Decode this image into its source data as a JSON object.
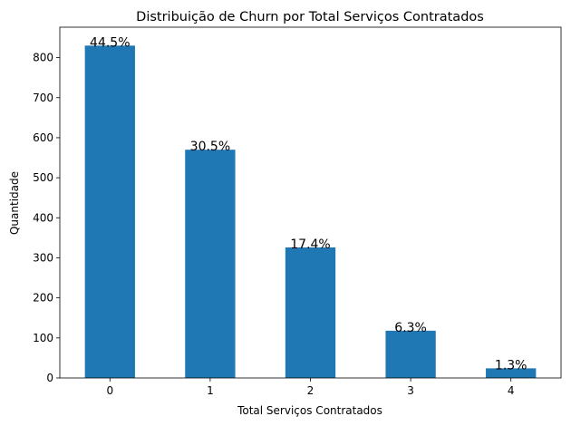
{
  "chart_data": {
    "type": "bar",
    "title": "Distribuição de Churn por Total Serviços Contratados",
    "x_label": "Total Serviços Contratados",
    "y_label": "Quantidade",
    "categories": [
      "0",
      "1",
      "2",
      "3",
      "4"
    ],
    "values": [
      830,
      570,
      326,
      118,
      24
    ],
    "annotations": [
      "44.5%",
      "30.5%",
      "17.4%",
      "6.3%",
      "1.3%"
    ],
    "color": "#1f77b4",
    "ylim": [
      0,
      876
    ],
    "yticks": [
      0,
      100,
      200,
      300,
      400,
      500,
      600,
      700,
      800
    ],
    "grid": false
  }
}
